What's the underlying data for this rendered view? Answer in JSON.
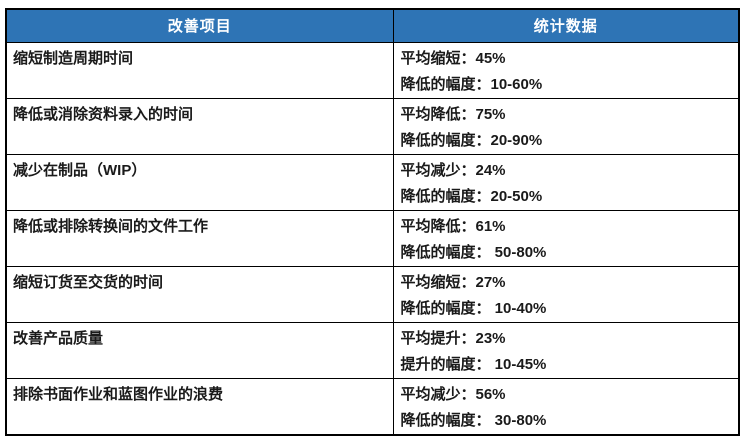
{
  "table": {
    "colors": {
      "header_bg": "#2E74B5",
      "header_text": "#FFFFFF",
      "border": "#000000",
      "body_text": "#1A1A1A"
    },
    "columns": [
      {
        "label": "改善项目"
      },
      {
        "label": "统计数据"
      }
    ],
    "rows": [
      {
        "item": "缩短制造周期时间",
        "stats": [
          "平均缩短：45%",
          "降低的幅度：10-60%"
        ]
      },
      {
        "item": "降低或消除资料录入的时间",
        "stats": [
          "平均降低：75%",
          "降低的幅度：20-90%"
        ]
      },
      {
        "item": "减少在制品（WIP）",
        "stats": [
          "平均减少：24%",
          "降低的幅度：20-50%"
        ]
      },
      {
        "item": "降低或排除转换间的文件工作",
        "stats": [
          "平均降低：61%",
          "降低的幅度： 50-80%"
        ]
      },
      {
        "item": "缩短订货至交货的时间",
        "stats": [
          "平均缩短：27%",
          "降低的幅度： 10-40%"
        ]
      },
      {
        "item": "改善产品质量",
        "stats": [
          "平均提升：23%",
          "提升的幅度： 10-45%"
        ]
      },
      {
        "item": "排除书面作业和蓝图作业的浪费",
        "stats": [
          "平均减少：56%",
          "降低的幅度： 30-80%"
        ]
      }
    ]
  }
}
